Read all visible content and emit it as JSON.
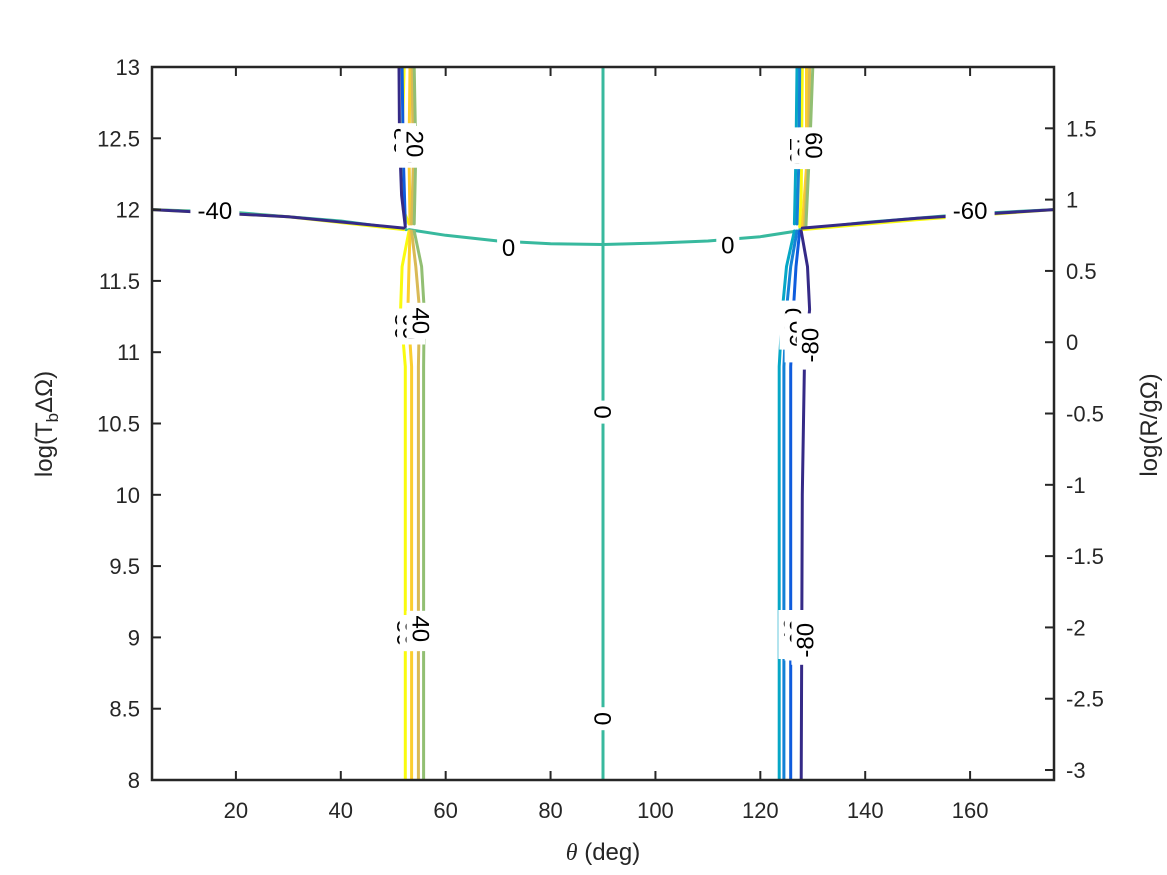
{
  "chart_data": {
    "type": "contour",
    "xlabel": "θ (deg)",
    "ylabel": "log(Tb ΔΩ)",
    "ylabel_right": "log(R/gΩ)",
    "xlim": [
      4,
      176
    ],
    "ylim": [
      8,
      13
    ],
    "ylim_right": [
      -3.07,
      1.93
    ],
    "x_ticks": [
      20,
      40,
      60,
      80,
      100,
      120,
      140,
      160
    ],
    "y_ticks": [
      8,
      8.5,
      9,
      9.5,
      10,
      10.5,
      11,
      11.5,
      12,
      12.5,
      13
    ],
    "y_ticks_right": [
      -3,
      -2.5,
      -2,
      -1.5,
      -1,
      -0.5,
      0,
      0.5,
      1,
      1.5
    ],
    "y_tick_labels": [
      "8",
      "8.5",
      "9",
      "9.5",
      "10",
      "10.5",
      "11",
      "11.5",
      "12",
      "12.5",
      "13"
    ],
    "y_tick_labels_right": [
      "-3",
      "-2.5",
      "-2",
      "-1.5",
      "-1",
      "-0.5",
      "0",
      "0.5",
      "1",
      "1.5"
    ],
    "x_tick_labels": [
      "20",
      "40",
      "60",
      "80",
      "100",
      "120",
      "140",
      "160"
    ],
    "grid": false,
    "colormap": "parula",
    "colors": {
      "level_neg80": "#352a87",
      "level_neg60": "#0f5cdd",
      "level_neg40": "#1481d6",
      "level_neg20": "#06a7c6",
      "level_0": "#38b99e",
      "level_20": "#92bf73",
      "level_40": "#d9ba56",
      "level_60": "#fcce2e",
      "level_80": "#f9fb0e"
    },
    "levels": [
      -80,
      -60,
      -40,
      -20,
      0,
      20,
      40,
      60,
      80
    ],
    "contour_labels": [
      {
        "text": "0",
        "x": 72,
        "y": 11.73,
        "rotation": 0
      },
      {
        "text": "0",
        "x": 113.8,
        "y": 11.75,
        "rotation": 0
      },
      {
        "text": "0",
        "x": 90,
        "y": 10.58,
        "rotation": -90
      },
      {
        "text": "0",
        "x": 90,
        "y": 8.43,
        "rotation": -90
      },
      {
        "text": "-40",
        "x": 16,
        "y": 11.99,
        "rotation": 0
      },
      {
        "text": "-60",
        "x": 160,
        "y": 11.99,
        "rotation": 0
      },
      {
        "text": "80",
        "x": 51.7,
        "y": 12.48,
        "rotation": 90
      },
      {
        "text": "60",
        "x": 53.2,
        "y": 12.42,
        "rotation": 90
      },
      {
        "text": "20",
        "x": 54.1,
        "y": 12.46,
        "rotation": 90
      },
      {
        "text": "80",
        "x": 51.9,
        "y": 11.18,
        "rotation": 90
      },
      {
        "text": "60",
        "x": 53.4,
        "y": 11.18,
        "rotation": 90
      },
      {
        "text": "40",
        "x": 55.2,
        "y": 11.22,
        "rotation": 90
      },
      {
        "text": "80",
        "x": 52.2,
        "y": 9.03,
        "rotation": 90
      },
      {
        "text": "60",
        "x": 53.9,
        "y": 9.03,
        "rotation": 90
      },
      {
        "text": "40",
        "x": 55.2,
        "y": 9.06,
        "rotation": 90
      },
      {
        "text": "20",
        "x": 127.2,
        "y": 12.41,
        "rotation": 90
      },
      {
        "text": "40",
        "x": 128.6,
        "y": 12.45,
        "rotation": 90
      },
      {
        "text": "60",
        "x": 130.1,
        "y": 12.45,
        "rotation": 90
      },
      {
        "text": "-20",
        "x": 126.3,
        "y": 11.19,
        "rotation": -90
      },
      {
        "text": "-60",
        "x": 127.3,
        "y": 11.1,
        "rotation": -90
      },
      {
        "text": "-80",
        "x": 129.6,
        "y": 11.05,
        "rotation": -90
      },
      {
        "text": "-40",
        "x": 126.1,
        "y": 9.02,
        "rotation": -90
      },
      {
        "text": "-60",
        "x": 127.3,
        "y": 9.01,
        "rotation": -90
      },
      {
        "text": "-80",
        "x": 128.6,
        "y": 8.98,
        "rotation": -90
      }
    ],
    "contours": [
      {
        "level": 0,
        "segments": [
          [
            [
              53,
              11.86
            ],
            [
              60,
              11.82
            ],
            [
              70,
              11.78
            ],
            [
              80,
              11.76
            ],
            [
              90,
              11.755
            ],
            [
              100,
              11.765
            ],
            [
              110,
              11.78
            ],
            [
              120,
              11.81
            ],
            [
              127,
              11.85
            ]
          ],
          [
            [
              90,
              8
            ],
            [
              90,
              13
            ]
          ],
          [
            [
              4,
              12.0
            ],
            [
              20,
              11.98
            ],
            [
              40,
              11.92
            ],
            [
              52.5,
              11.86
            ]
          ],
          [
            [
              127.5,
              11.86
            ],
            [
              140,
              11.91
            ],
            [
              160,
              11.97
            ],
            [
              176,
              12.0
            ]
          ]
        ]
      },
      {
        "level": 80,
        "segments": [
          [
            [
              52.3,
              8
            ],
            [
              52.3,
              10.9
            ],
            [
              51.4,
              11.3
            ],
            [
              51.7,
              11.6
            ],
            [
              53,
              11.85
            ]
          ],
          [
            [
              53,
              11.9
            ],
            [
              51.9,
              12.0
            ],
            [
              51.7,
              12.5
            ],
            [
              52.1,
              13
            ]
          ],
          [
            [
              4,
              12.0
            ],
            [
              30,
              11.95
            ],
            [
              52,
              11.86
            ]
          ],
          [
            [
              128,
              11.86
            ],
            [
              150,
              11.93
            ],
            [
              176,
              12.0
            ]
          ],
          [
            [
              128,
              13
            ],
            [
              127.8,
              12.1
            ],
            [
              127.5,
              11.88
            ]
          ]
        ]
      },
      {
        "level": 60,
        "segments": [
          [
            [
              53.5,
              8
            ],
            [
              53.5,
              10.9
            ],
            [
              52.8,
              11.3
            ],
            [
              53.0,
              11.6
            ],
            [
              53.2,
              11.85
            ]
          ],
          [
            [
              53.2,
              11.9
            ],
            [
              53.0,
              12.4
            ],
            [
              53.2,
              13
            ]
          ],
          [
            [
              128.8,
              13
            ],
            [
              128.8,
              12.3
            ],
            [
              128.0,
              11.88
            ]
          ]
        ]
      },
      {
        "level": 40,
        "segments": [
          [
            [
              54.8,
              8
            ],
            [
              54.8,
              10.9
            ],
            [
              55.0,
              11.3
            ],
            [
              54.3,
              11.6
            ],
            [
              53.5,
              11.85
            ]
          ],
          [
            [
              53.5,
              11.9
            ],
            [
              53.8,
              12.3
            ],
            [
              53.6,
              13
            ]
          ],
          [
            [
              129.4,
              13
            ],
            [
              129.2,
              12.4
            ],
            [
              128.4,
              11.88
            ]
          ]
        ]
      },
      {
        "level": 20,
        "segments": [
          [
            [
              55.8,
              8
            ],
            [
              55.8,
              10.9
            ],
            [
              55.9,
              11.3
            ],
            [
              55.4,
              11.6
            ],
            [
              54.0,
              11.85
            ]
          ],
          [
            [
              54.0,
              11.9
            ],
            [
              54.3,
              12.4
            ],
            [
              54.0,
              13
            ]
          ],
          [
            [
              130.0,
              13
            ],
            [
              129.6,
              12.6
            ],
            [
              128.7,
              11.88
            ]
          ]
        ]
      },
      {
        "level": -20,
        "segments": [
          [
            [
              123.6,
              8
            ],
            [
              123.6,
              10.9
            ],
            [
              124.2,
              11.3
            ],
            [
              125.0,
              11.6
            ],
            [
              126.5,
              11.85
            ]
          ],
          [
            [
              126.5,
              11.9
            ],
            [
              126.8,
              12.4
            ],
            [
              127.0,
              13
            ]
          ]
        ]
      },
      {
        "level": -40,
        "segments": [
          [
            [
              124.5,
              8
            ],
            [
              124.5,
              10.9
            ],
            [
              125.0,
              11.3
            ],
            [
              125.8,
              11.6
            ],
            [
              127.0,
              11.85
            ]
          ],
          [
            [
              127.0,
              11.9
            ],
            [
              127.4,
              12.4
            ],
            [
              127.5,
              13
            ]
          ]
        ]
      },
      {
        "level": -60,
        "segments": [
          [
            [
              125.8,
              8
            ],
            [
              125.8,
              10.9
            ],
            [
              126.3,
              11.3
            ],
            [
              126.8,
              11.6
            ],
            [
              127.5,
              11.85
            ]
          ],
          [
            [
              51.7,
              13
            ],
            [
              51.9,
              12.4
            ],
            [
              52.3,
              11.9
            ]
          ]
        ]
      },
      {
        "level": -80,
        "segments": [
          [
            [
              127.8,
              8
            ],
            [
              128.0,
              10.0
            ],
            [
              128.4,
              10.9
            ],
            [
              129.4,
              11.3
            ],
            [
              129.0,
              11.6
            ],
            [
              127.8,
              11.85
            ]
          ],
          [
            [
              51.1,
              13
            ],
            [
              51.2,
              12.5
            ],
            [
              51.6,
              12.1
            ],
            [
              52.3,
              11.88
            ]
          ],
          [
            [
              4,
              12.0
            ],
            [
              30,
              11.95
            ],
            [
              52,
              11.87
            ]
          ],
          [
            [
              128,
              11.87
            ],
            [
              150,
              11.94
            ],
            [
              176,
              12.0
            ]
          ]
        ]
      }
    ]
  }
}
